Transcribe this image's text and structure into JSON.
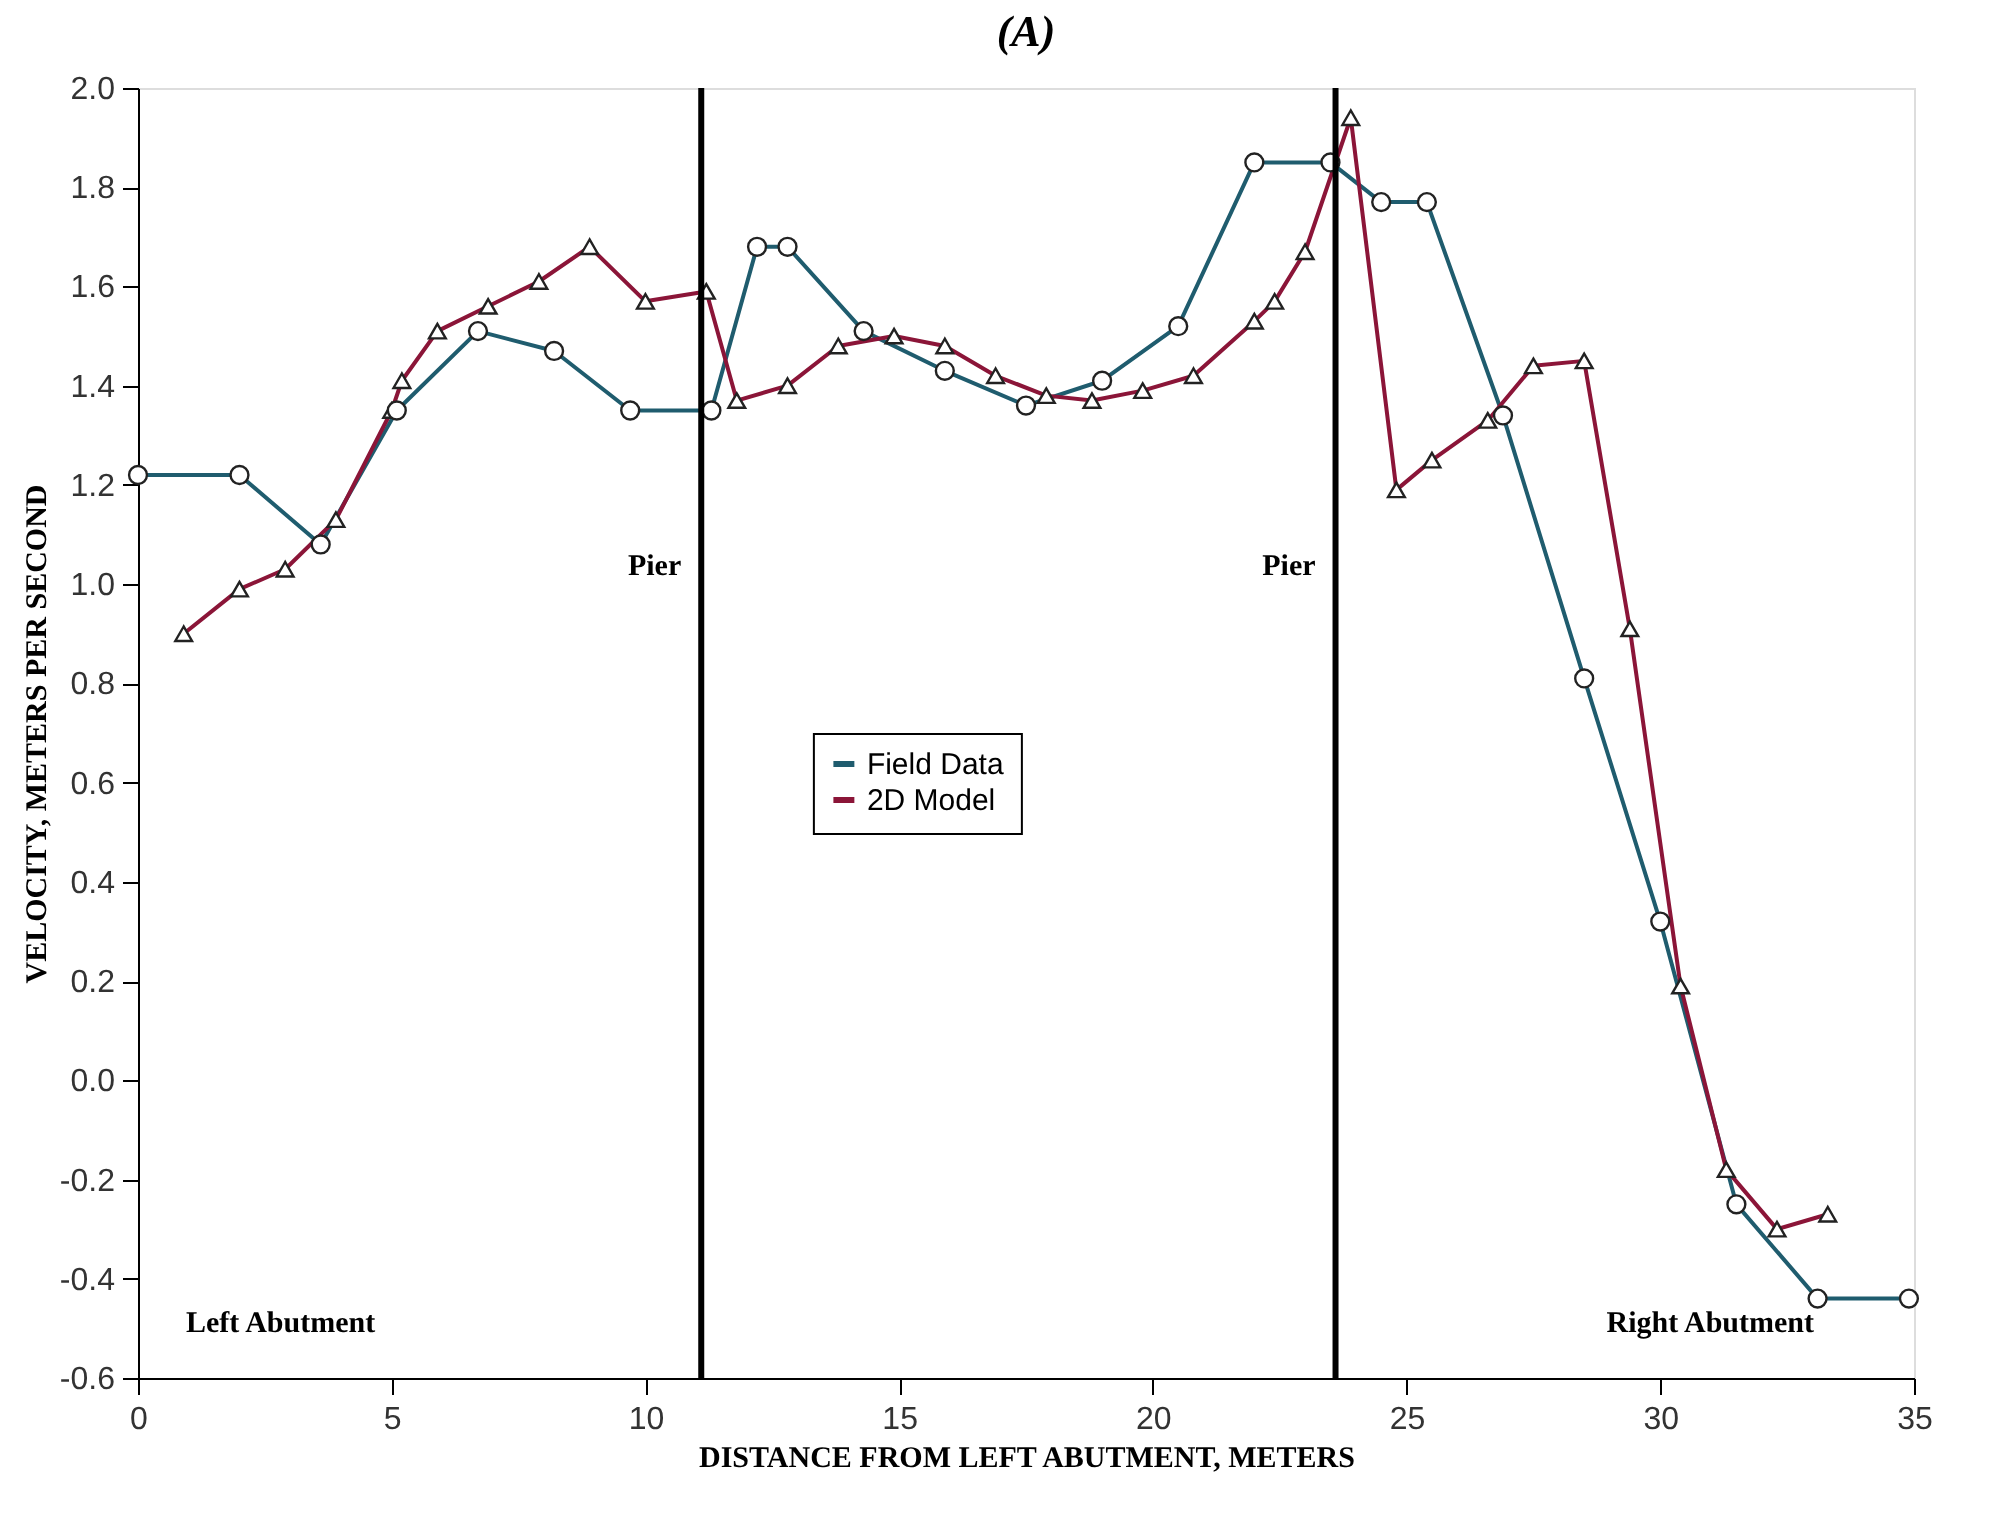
{
  "chart_data": {
    "type": "line",
    "title": "(A)",
    "xlabel": "DISTANCE FROM LEFT ABUTMENT, METERS",
    "ylabel": "VELOCITY, METERS PER SECOND",
    "series": [
      {
        "name": "Field Data",
        "color": "#1f5c6e",
        "marker": "circle",
        "x": [
          0,
          2.0,
          3.6,
          5.1,
          6.7,
          8.2,
          9.7,
          11.3,
          12.2,
          12.8,
          14.3,
          15.9,
          17.5,
          19.0,
          20.5,
          22.0,
          23.5,
          24.5,
          25.4,
          26.9,
          28.5,
          30.0,
          31.5,
          33.1,
          34.9
        ],
        "values": [
          1.22,
          1.22,
          1.08,
          1.35,
          1.51,
          1.47,
          1.35,
          1.35,
          1.68,
          1.68,
          1.51,
          1.43,
          1.36,
          1.41,
          1.52,
          1.85,
          1.85,
          1.77,
          1.77,
          1.34,
          0.81,
          0.32,
          -0.25,
          -0.44,
          -0.44
        ]
      },
      {
        "name": "2D Model",
        "color": "#8b1538",
        "marker": "triangle",
        "x": [
          0.9,
          2.0,
          2.9,
          3.9,
          5.0,
          5.2,
          5.9,
          6.9,
          7.9,
          8.9,
          10.0,
          11.2,
          11.8,
          12.8,
          13.8,
          14.9,
          15.9,
          16.9,
          17.9,
          18.8,
          19.8,
          20.8,
          22.0,
          22.4,
          23.0,
          23.9,
          24.8,
          25.5,
          26.6,
          27.5,
          28.5,
          29.4,
          30.4,
          31.3,
          32.3,
          33.3
        ],
        "values": [
          0.9,
          0.99,
          1.03,
          1.13,
          1.35,
          1.41,
          1.51,
          1.56,
          1.61,
          1.68,
          1.57,
          1.59,
          1.37,
          1.4,
          1.48,
          1.5,
          1.48,
          1.42,
          1.38,
          1.37,
          1.39,
          1.42,
          1.53,
          1.57,
          1.67,
          1.94,
          1.19,
          1.25,
          1.33,
          1.44,
          1.45,
          0.91,
          0.19,
          -0.18,
          -0.3,
          -0.27
        ]
      }
    ],
    "xlim": [
      0,
      35
    ],
    "xticks": [
      0,
      5,
      10,
      15,
      20,
      25,
      30,
      35
    ],
    "ylim": [
      -0.6,
      2.0
    ],
    "yticks": [
      -0.6,
      -0.4,
      -0.2,
      {
        "value": 0,
        "label": "0.0"
      },
      0.2,
      0.4,
      0.6,
      0.8,
      {
        "value": 1,
        "label": "1.0"
      },
      1.2,
      1.4,
      1.6,
      1.8,
      {
        "value": 2,
        "label": "2.0"
      }
    ],
    "ref_lines": [
      {
        "axis": "x",
        "value": 11.1,
        "label": "Pier",
        "color": "#000000"
      },
      {
        "axis": "x",
        "value": 23.6,
        "label": "Pier",
        "color": "#000000"
      }
    ],
    "annotations": [
      "Left Abutment",
      "Right Abutment"
    ],
    "grid": false,
    "legend": "center",
    "line_style": "solid"
  }
}
